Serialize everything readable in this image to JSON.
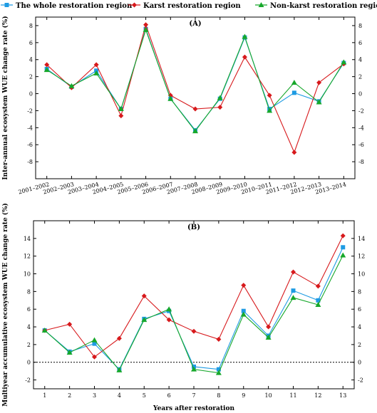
{
  "legend": [
    {
      "name": "The whole restoration region",
      "color": "#1E9BE3",
      "marker": "square"
    },
    {
      "name": "Karst restoration region",
      "color": "#D7191C",
      "marker": "diamond"
    },
    {
      "name": "Non-karst restoration region",
      "color": "#17A82B",
      "marker": "triangle"
    }
  ],
  "chart_data": [
    {
      "type": "line",
      "panel": "(A)",
      "title": "",
      "ylabel": "Inter-annual ecosystem WUE change rate (%)",
      "xlabel": "",
      "ylim": [
        -10,
        9
      ],
      "yticks": [
        -8,
        -6,
        -4,
        -2,
        0,
        2,
        4,
        6,
        8
      ],
      "categories": [
        "2001–2002",
        "2002–2003",
        "2003–2004",
        "2004–2005",
        "2005–2006",
        "2006–2007",
        "2007–2008",
        "2008–2009",
        "2009–2010",
        "2010–2011",
        "2011–2012",
        "2012–2013",
        "2013–2014"
      ],
      "series": [
        {
          "name": "The whole restoration region",
          "values": [
            2.9,
            0.8,
            2.7,
            -1.8,
            7.6,
            -0.6,
            -4.3,
            -0.6,
            6.6,
            -1.8,
            0.1,
            -0.9,
            3.6
          ]
        },
        {
          "name": "Karst restoration region",
          "values": [
            3.4,
            0.7,
            3.4,
            -2.6,
            8.1,
            -0.2,
            -1.8,
            -1.6,
            4.3,
            -0.2,
            -6.9,
            1.3,
            3.5
          ]
        },
        {
          "name": "Non-karst restoration region",
          "values": [
            2.8,
            0.9,
            2.4,
            -1.8,
            7.5,
            -0.6,
            -4.4,
            -0.5,
            6.7,
            -2.0,
            1.3,
            -1.0,
            3.7
          ]
        }
      ]
    },
    {
      "type": "line",
      "panel": "(B)",
      "title": "",
      "ylabel": "Multiyear accumulative ecosystem WUE change rate (%)",
      "xlabel": "Years after restoration",
      "ylim": [
        -3,
        16
      ],
      "yticks": [
        -2,
        0,
        2,
        4,
        6,
        8,
        10,
        12,
        14
      ],
      "categories": [
        "1",
        "2",
        "3",
        "4",
        "5",
        "6",
        "7",
        "8",
        "9",
        "10",
        "11",
        "12",
        "13"
      ],
      "series": [
        {
          "name": "The whole restoration region",
          "values": [
            3.6,
            1.2,
            2.1,
            -0.8,
            4.9,
            5.8,
            -0.5,
            -0.8,
            5.8,
            3.0,
            8.1,
            7.0,
            13.0
          ]
        },
        {
          "name": "Karst restoration region",
          "values": [
            3.6,
            4.3,
            0.6,
            2.7,
            7.5,
            4.8,
            3.5,
            2.6,
            8.7,
            4.0,
            10.2,
            8.6,
            14.3
          ]
        },
        {
          "name": "Non-karst restoration region",
          "values": [
            3.6,
            1.1,
            2.5,
            -0.9,
            4.8,
            6.0,
            -0.8,
            -1.2,
            5.4,
            2.8,
            7.3,
            6.5,
            12.1
          ]
        }
      ]
    }
  ]
}
